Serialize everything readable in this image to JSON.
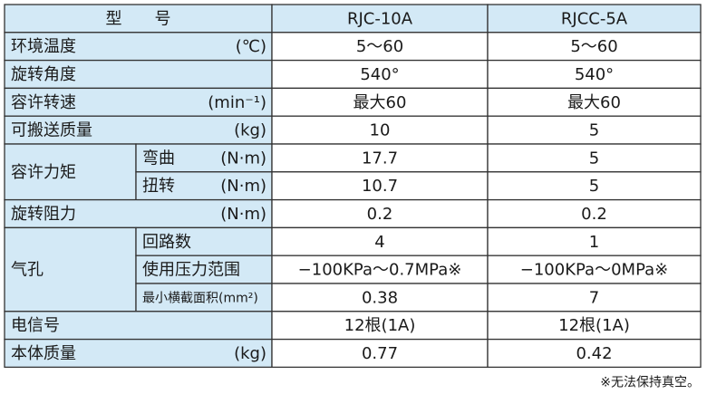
{
  "table": {
    "header": [
      "型　　号",
      "RJC-10A",
      "RJCC-5A"
    ],
    "rows": [
      {
        "label": "环境温度",
        "unit": "(℃)",
        "values": [
          "5～60",
          "5～60"
        ]
      },
      {
        "label": "旋转角度",
        "values": [
          "540°",
          "540°"
        ]
      },
      {
        "label": "容许转速",
        "unit": "(min⁻¹)",
        "values": [
          "最大60",
          "最大60"
        ]
      },
      {
        "label": "可搬送质量",
        "unit": "(kg)",
        "values": [
          "10",
          "5"
        ]
      },
      {
        "label": "容许力矩",
        "subrows": [
          {
            "label": "弯曲",
            "unit": "(N·m)",
            "values": [
              "17.7",
              "5"
            ]
          },
          {
            "label": "扭转",
            "unit": "(N·m)",
            "values": [
              "10.7",
              "5"
            ]
          }
        ]
      },
      {
        "label": "旋转阻力",
        "unit": "(N·m)",
        "values": [
          "0.2",
          "0.2"
        ]
      },
      {
        "label": "气孔",
        "subrows": [
          {
            "label": "回路数",
            "values": [
              "4",
              "1"
            ]
          },
          {
            "label": "使用压力范围",
            "values": [
              "−100KPa～0.7MPa※",
              "−100KPa～0MPa※"
            ]
          },
          {
            "label": "最小横截面积(mm²)",
            "values": [
              "0.38",
              "7"
            ]
          }
        ]
      },
      {
        "label": "电信号",
        "values": [
          "12根(1A)",
          "12根(1A)"
        ]
      },
      {
        "label": "本体质量",
        "unit": "(kg)",
        "values": [
          "0.77",
          "0.42"
        ]
      }
    ],
    "footnote": "※无法保持真空。"
  }
}
